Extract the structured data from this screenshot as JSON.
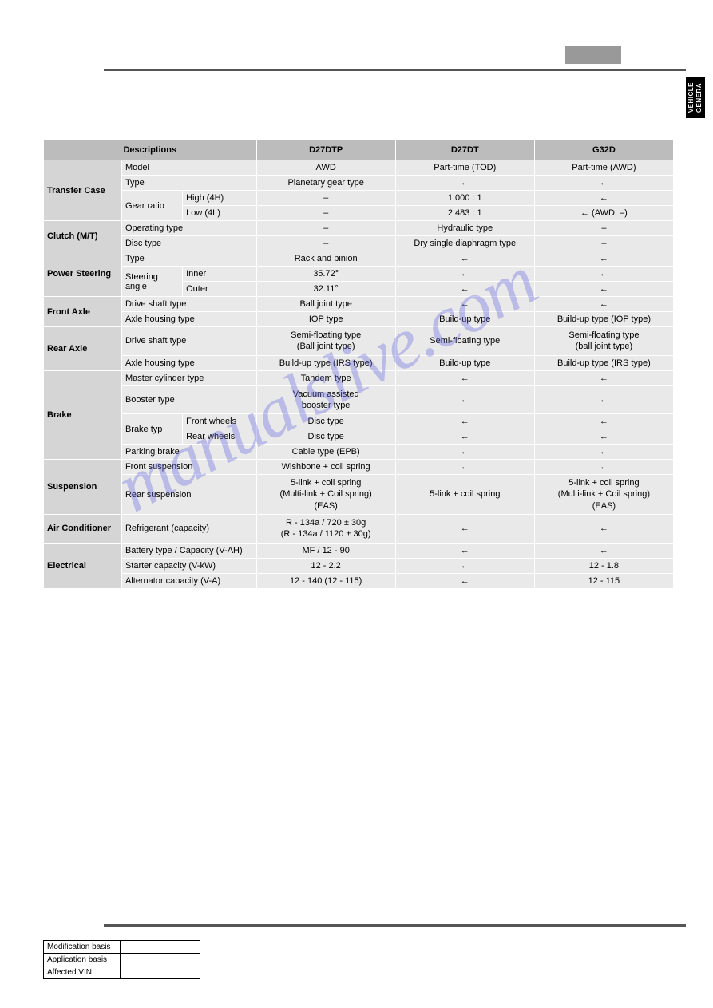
{
  "sideTab": "VEHICLE\nGENERA",
  "watermark": "manualslive.com",
  "headers": {
    "desc": "Descriptions",
    "c1": "D27DTP",
    "c2": "D27DT",
    "c3": "G32D"
  },
  "arrow": "←",
  "dash": "–",
  "rows": {
    "transferCase": {
      "label": "Transfer Case",
      "model": {
        "label": "Model",
        "c1": "AWD",
        "c2": "Part-time (TOD)",
        "c3": "Part-time (AWD)"
      },
      "type": {
        "label": "Type",
        "c1": "Planetary gear type",
        "c2": "←",
        "c3": "←"
      },
      "gearRatio": {
        "label": "Gear ratio",
        "high": {
          "label": "High (4H)",
          "c1": "–",
          "c2": "1.000 : 1",
          "c3": "←"
        },
        "low": {
          "label": "Low (4L)",
          "c1": "–",
          "c2": "2.483 : 1",
          "c3": "← (AWD: –)"
        }
      }
    },
    "clutch": {
      "label": "Clutch (M/T)",
      "opType": {
        "label": "Operating type",
        "c1": "–",
        "c2": "Hydraulic type",
        "c3": "–"
      },
      "discType": {
        "label": "Disc type",
        "c1": "–",
        "c2": "Dry single diaphragm type",
        "c3": "–"
      }
    },
    "powerSteering": {
      "label": "Power Steering",
      "type": {
        "label": "Type",
        "c1": "Rack and pinion",
        "c2": "←",
        "c3": "←"
      },
      "angle": {
        "label": "Steering angle",
        "inner": {
          "label": "Inner",
          "c1": "35.72°",
          "c2": "←",
          "c3": "←"
        },
        "outer": {
          "label": "Outer",
          "c1": "32.11°",
          "c2": "←",
          "c3": "←"
        }
      }
    },
    "frontAxle": {
      "label": "Front Axle",
      "driveShaft": {
        "label": "Drive shaft type",
        "c1": "Ball joint type",
        "c2": "←",
        "c3": "←"
      },
      "housing": {
        "label": "Axle housing type",
        "c1": "IOP type",
        "c2": "Build-up type",
        "c3": "Build-up type (IOP type)"
      }
    },
    "rearAxle": {
      "label": "Rear Axle",
      "driveShaft": {
        "label": "Drive shaft type",
        "c1": "Semi-floating type\n(Ball joint type)",
        "c2": "Semi-floating type",
        "c3": "Semi-floating type\n(ball joint type)"
      },
      "housing": {
        "label": "Axle housing type",
        "c1": "Build-up type (IRS type)",
        "c2": "Build-up type",
        "c3": "Build-up type (IRS type)"
      }
    },
    "brake": {
      "label": "Brake",
      "master": {
        "label": "Master cylinder type",
        "c1": "Tandem type",
        "c2": "←",
        "c3": "←"
      },
      "booster": {
        "label": "Booster type",
        "c1": "Vacuum assisted\nbooster type",
        "c2": "←",
        "c3": "←"
      },
      "brakeTyp": {
        "label": "Brake typ",
        "front": {
          "label": "Front wheels",
          "c1": "Disc type",
          "c2": "←",
          "c3": "←"
        },
        "rear": {
          "label": "Rear wheels",
          "c1": "Disc type",
          "c2": "←",
          "c3": "←"
        }
      },
      "parking": {
        "label": "Parking brake",
        "c1": "Cable type (EPB)",
        "c2": "←",
        "c3": "←"
      }
    },
    "suspension": {
      "label": "Suspension",
      "front": {
        "label": "Front suspension",
        "c1": "Wishbone + coil spring",
        "c2": "←",
        "c3": "←"
      },
      "rear": {
        "label": "Rear suspension",
        "c1": "5-link + coil spring\n(Multi-link + Coil spring)\n(EAS)",
        "c2": "5-link + coil spring",
        "c3": "5-link + coil spring\n(Multi-link + Coil spring)\n(EAS)"
      }
    },
    "ac": {
      "label": "Air Conditioner",
      "refrigerant": {
        "label": "Refrigerant (capacity)",
        "c1": "R - 134a / 720 ± 30g\n(R - 134a / 1120 ± 30g)",
        "c2": "←",
        "c3": "←"
      }
    },
    "electrical": {
      "label": "Electrical",
      "battery": {
        "label": "Battery type / Capacity (V-AH)",
        "c1": "MF / 12 - 90",
        "c2": "←",
        "c3": "←"
      },
      "starter": {
        "label": "Starter capacity (V-kW)",
        "c1": "12 - 2.2",
        "c2": "←",
        "c3": "12 - 1.8"
      },
      "alternator": {
        "label": "Alternator capacity (V-A)",
        "c1": "12 - 140 (12 - 115)",
        "c2": "←",
        "c3": "12 - 115"
      }
    }
  },
  "modTable": {
    "r1": "Modification basis",
    "r2": "Application basis",
    "r3": "Affected VIN"
  }
}
